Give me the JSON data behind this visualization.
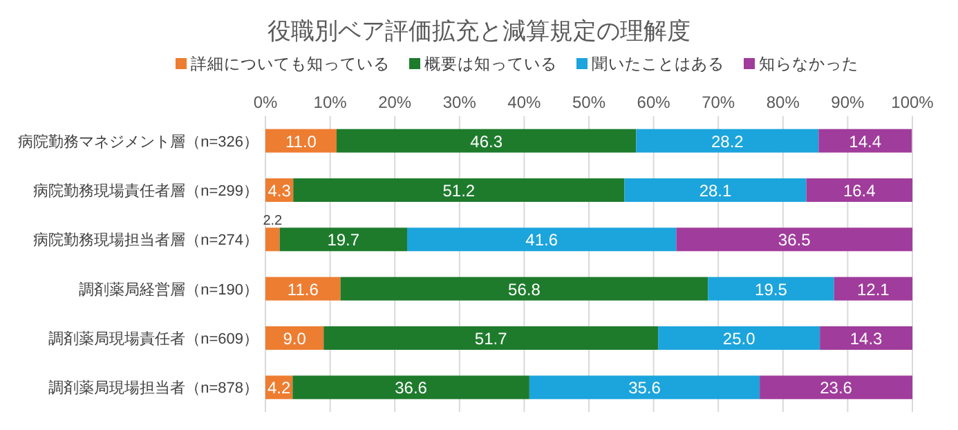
{
  "chart_data": {
    "type": "bar",
    "orientation": "horizontal",
    "stacked": true,
    "title": "役職別ベア評価拡充と減算規定の理解度",
    "categories": [
      "病院勤務マネジメント層（n=326）",
      "病院勤務現場責任者層（n=299）",
      "病院勤務現場担当者層（n=274）",
      "調剤薬局経営層（n=190）",
      "調剤薬局現場責任者（n=609）",
      "調剤薬局現場担当者（n=878）"
    ],
    "series": [
      {
        "name": "詳細についても知っている",
        "color": "#ed7d31",
        "values": [
          11.0,
          4.3,
          2.2,
          11.6,
          9.0,
          4.2
        ],
        "value_labels": [
          "11.0",
          "4.3",
          "2.2",
          "11.6",
          "9.0",
          "4.2"
        ]
      },
      {
        "name": "概要は知っている",
        "color": "#1e7b2c",
        "values": [
          46.3,
          51.2,
          19.7,
          56.8,
          51.7,
          36.6
        ],
        "value_labels": [
          "46.3",
          "51.2",
          "19.7",
          "56.8",
          "51.7",
          "36.6"
        ]
      },
      {
        "name": "聞いたことはある",
        "color": "#1ca4dc",
        "values": [
          28.2,
          28.1,
          41.6,
          19.5,
          25.0,
          35.6
        ],
        "value_labels": [
          "28.2",
          "28.1",
          "41.6",
          "19.5",
          "25.0",
          "35.6"
        ]
      },
      {
        "name": "知らなかった",
        "color": "#a03c9b",
        "values": [
          14.4,
          16.4,
          36.5,
          12.1,
          14.3,
          23.6
        ],
        "value_labels": [
          "14.4",
          "16.4",
          "36.5",
          "12.1",
          "14.3",
          "23.6"
        ]
      }
    ],
    "xlim": [
      0,
      100
    ],
    "xticks": [
      {
        "value": 0,
        "label": "0%"
      },
      {
        "value": 10,
        "label": "10%"
      },
      {
        "value": 20,
        "label": "20%"
      },
      {
        "value": 30,
        "label": "30%"
      },
      {
        "value": 40,
        "label": "40%"
      },
      {
        "value": 50,
        "label": "50%"
      },
      {
        "value": 60,
        "label": "60%"
      },
      {
        "value": 70,
        "label": "70%"
      },
      {
        "value": 80,
        "label": "80%"
      },
      {
        "value": 90,
        "label": "90%"
      },
      {
        "value": 100,
        "label": "100%"
      }
    ],
    "grid": "x",
    "legend": "top left"
  }
}
